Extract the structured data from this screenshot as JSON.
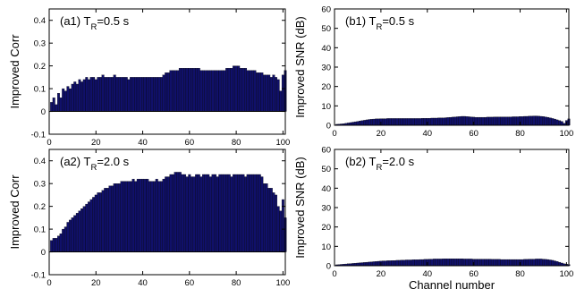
{
  "chart_data": [
    {
      "id": "a1",
      "type": "bar",
      "title": {
        "prefix": "(a1) T",
        "sub": "R",
        "suffix": "=0.5 s"
      },
      "ylabel": "Improved Corr",
      "xlabel": "",
      "xlim": [
        0,
        101
      ],
      "ylim": [
        -0.1,
        0.45
      ],
      "xticks": [
        "0",
        "20",
        "40",
        "60",
        "80",
        "100"
      ],
      "xtick_values": [
        0,
        20,
        40,
        60,
        80,
        100
      ],
      "yticks": [
        "-0.1",
        "0",
        "0.1",
        "0.2",
        "0.3",
        "0.4"
      ],
      "ytick_values": [
        -0.1,
        0,
        0.1,
        0.2,
        0.3,
        0.4
      ],
      "x_start": 1,
      "values": [
        0.04,
        0.06,
        0.03,
        0.08,
        0.06,
        0.1,
        0.09,
        0.11,
        0.1,
        0.12,
        0.13,
        0.12,
        0.14,
        0.13,
        0.14,
        0.15,
        0.14,
        0.15,
        0.15,
        0.14,
        0.15,
        0.15,
        0.16,
        0.15,
        0.15,
        0.15,
        0.15,
        0.16,
        0.15,
        0.15,
        0.15,
        0.15,
        0.15,
        0.14,
        0.15,
        0.15,
        0.15,
        0.15,
        0.15,
        0.15,
        0.15,
        0.15,
        0.15,
        0.15,
        0.15,
        0.15,
        0.15,
        0.15,
        0.16,
        0.17,
        0.17,
        0.18,
        0.18,
        0.18,
        0.18,
        0.19,
        0.19,
        0.19,
        0.19,
        0.19,
        0.19,
        0.19,
        0.19,
        0.19,
        0.18,
        0.18,
        0.18,
        0.18,
        0.18,
        0.18,
        0.18,
        0.18,
        0.18,
        0.18,
        0.18,
        0.19,
        0.19,
        0.19,
        0.2,
        0.2,
        0.2,
        0.19,
        0.19,
        0.19,
        0.18,
        0.18,
        0.18,
        0.18,
        0.17,
        0.17,
        0.17,
        0.16,
        0.16,
        0.16,
        0.15,
        0.16,
        0.15,
        0.14,
        0.09,
        0.16,
        0.18
      ]
    },
    {
      "id": "b1",
      "type": "bar",
      "title": {
        "prefix": "(b1) T",
        "sub": "R",
        "suffix": "=0.5 s"
      },
      "ylabel": "Improved SNR (dB)",
      "xlabel": "",
      "xlim": [
        0,
        101
      ],
      "ylim": [
        0,
        60
      ],
      "xticks": [
        "0",
        "20",
        "40",
        "60",
        "80",
        "100"
      ],
      "xtick_values": [
        0,
        20,
        40,
        60,
        80,
        100
      ],
      "yticks": [
        "0",
        "10",
        "20",
        "30",
        "40",
        "50",
        "60"
      ],
      "ytick_values": [
        0,
        10,
        20,
        30,
        40,
        50,
        60
      ],
      "x_start": 1,
      "values": [
        0.5,
        0.6,
        0.7,
        0.8,
        1.0,
        1.2,
        1.4,
        1.6,
        1.8,
        2.0,
        2.2,
        2.4,
        2.6,
        2.8,
        3.0,
        3.1,
        3.2,
        3.3,
        3.3,
        3.4,
        3.4,
        3.4,
        3.5,
        3.5,
        3.5,
        3.5,
        3.5,
        3.5,
        3.5,
        3.5,
        3.5,
        3.5,
        3.5,
        3.5,
        3.5,
        3.5,
        3.5,
        3.6,
        3.6,
        3.6,
        3.6,
        3.7,
        3.7,
        3.7,
        3.8,
        3.8,
        3.8,
        3.9,
        4.0,
        4.1,
        4.2,
        4.3,
        4.4,
        4.5,
        4.6,
        4.6,
        4.5,
        4.4,
        4.3,
        4.2,
        4.1,
        4.1,
        4.1,
        4.1,
        4.1,
        4.2,
        4.2,
        4.2,
        4.3,
        4.3,
        4.3,
        4.3,
        4.3,
        4.3,
        4.3,
        4.3,
        4.4,
        4.4,
        4.4,
        4.5,
        4.5,
        4.6,
        4.6,
        4.7,
        4.7,
        4.8,
        4.8,
        4.7,
        4.6,
        4.5,
        4.3,
        4.1,
        3.8,
        3.5,
        3.2,
        2.8,
        2.4,
        2.0,
        1.0,
        2.5,
        3.3
      ]
    },
    {
      "id": "a2",
      "type": "bar",
      "title": {
        "prefix": "(a2) T",
        "sub": "R",
        "suffix": "=2.0 s"
      },
      "ylabel": "Improved Corr",
      "xlabel": "Channel number",
      "xlim": [
        0,
        101
      ],
      "ylim": [
        -0.1,
        0.45
      ],
      "xticks": [
        "0",
        "20",
        "40",
        "60",
        "80",
        "100"
      ],
      "xtick_values": [
        0,
        20,
        40,
        60,
        80,
        100
      ],
      "yticks": [
        "-0.1",
        "0",
        "0.1",
        "0.2",
        "0.3",
        "0.4"
      ],
      "ytick_values": [
        -0.1,
        0,
        0.1,
        0.2,
        0.3,
        0.4
      ],
      "x_start": 1,
      "values": [
        0.05,
        0.06,
        0.06,
        0.07,
        0.08,
        0.1,
        0.11,
        0.13,
        0.14,
        0.15,
        0.16,
        0.17,
        0.18,
        0.19,
        0.2,
        0.21,
        0.22,
        0.23,
        0.24,
        0.25,
        0.26,
        0.26,
        0.27,
        0.28,
        0.28,
        0.29,
        0.29,
        0.3,
        0.3,
        0.3,
        0.31,
        0.31,
        0.31,
        0.31,
        0.31,
        0.32,
        0.31,
        0.32,
        0.32,
        0.32,
        0.32,
        0.32,
        0.31,
        0.31,
        0.31,
        0.32,
        0.31,
        0.31,
        0.32,
        0.33,
        0.33,
        0.34,
        0.34,
        0.35,
        0.35,
        0.35,
        0.34,
        0.34,
        0.33,
        0.34,
        0.33,
        0.33,
        0.34,
        0.34,
        0.33,
        0.34,
        0.34,
        0.34,
        0.33,
        0.34,
        0.34,
        0.33,
        0.34,
        0.34,
        0.34,
        0.34,
        0.34,
        0.33,
        0.34,
        0.34,
        0.34,
        0.34,
        0.34,
        0.33,
        0.34,
        0.34,
        0.34,
        0.34,
        0.34,
        0.34,
        0.33,
        0.3,
        0.3,
        0.28,
        0.28,
        0.26,
        0.25,
        0.2,
        0.18,
        0.23,
        0.15
      ]
    },
    {
      "id": "b2",
      "type": "bar",
      "title": {
        "prefix": "(b2) T",
        "sub": "R",
        "suffix": "=2.0 s"
      },
      "ylabel": "Improved SNR (dB)",
      "xlabel": "Channel number",
      "xlim": [
        0,
        101
      ],
      "ylim": [
        0,
        60
      ],
      "xticks": [
        "0",
        "20",
        "40",
        "60",
        "80",
        "100"
      ],
      "xtick_values": [
        0,
        20,
        40,
        60,
        80,
        100
      ],
      "yticks": [
        "0",
        "10",
        "20",
        "30",
        "40",
        "50",
        "60"
      ],
      "ytick_values": [
        0,
        10,
        20,
        30,
        40,
        50,
        60
      ],
      "x_start": 1,
      "values": [
        0.5,
        0.6,
        0.7,
        0.8,
        0.9,
        1.0,
        1.1,
        1.2,
        1.3,
        1.4,
        1.5,
        1.6,
        1.7,
        1.8,
        1.9,
        2.0,
        2.1,
        2.2,
        2.3,
        2.4,
        2.5,
        2.5,
        2.6,
        2.6,
        2.7,
        2.7,
        2.8,
        2.8,
        2.9,
        2.9,
        3.0,
        3.0,
        3.0,
        3.1,
        3.1,
        3.1,
        3.2,
        3.2,
        3.3,
        3.3,
        3.4,
        3.4,
        3.5,
        3.5,
        3.5,
        3.5,
        3.6,
        3.6,
        3.6,
        3.6,
        3.6,
        3.6,
        3.6,
        3.6,
        3.6,
        3.5,
        3.5,
        3.5,
        3.5,
        3.4,
        3.4,
        3.4,
        3.4,
        3.4,
        3.4,
        3.4,
        3.4,
        3.3,
        3.3,
        3.3,
        3.3,
        3.2,
        3.2,
        3.2,
        3.2,
        3.2,
        3.2,
        3.2,
        3.2,
        3.2,
        3.2,
        3.3,
        3.3,
        3.4,
        3.4,
        3.4,
        3.5,
        3.5,
        3.5,
        3.4,
        3.3,
        3.2,
        3.0,
        2.8,
        2.5,
        2.2,
        1.8,
        1.4,
        1.0,
        0.8,
        0.6
      ]
    }
  ]
}
